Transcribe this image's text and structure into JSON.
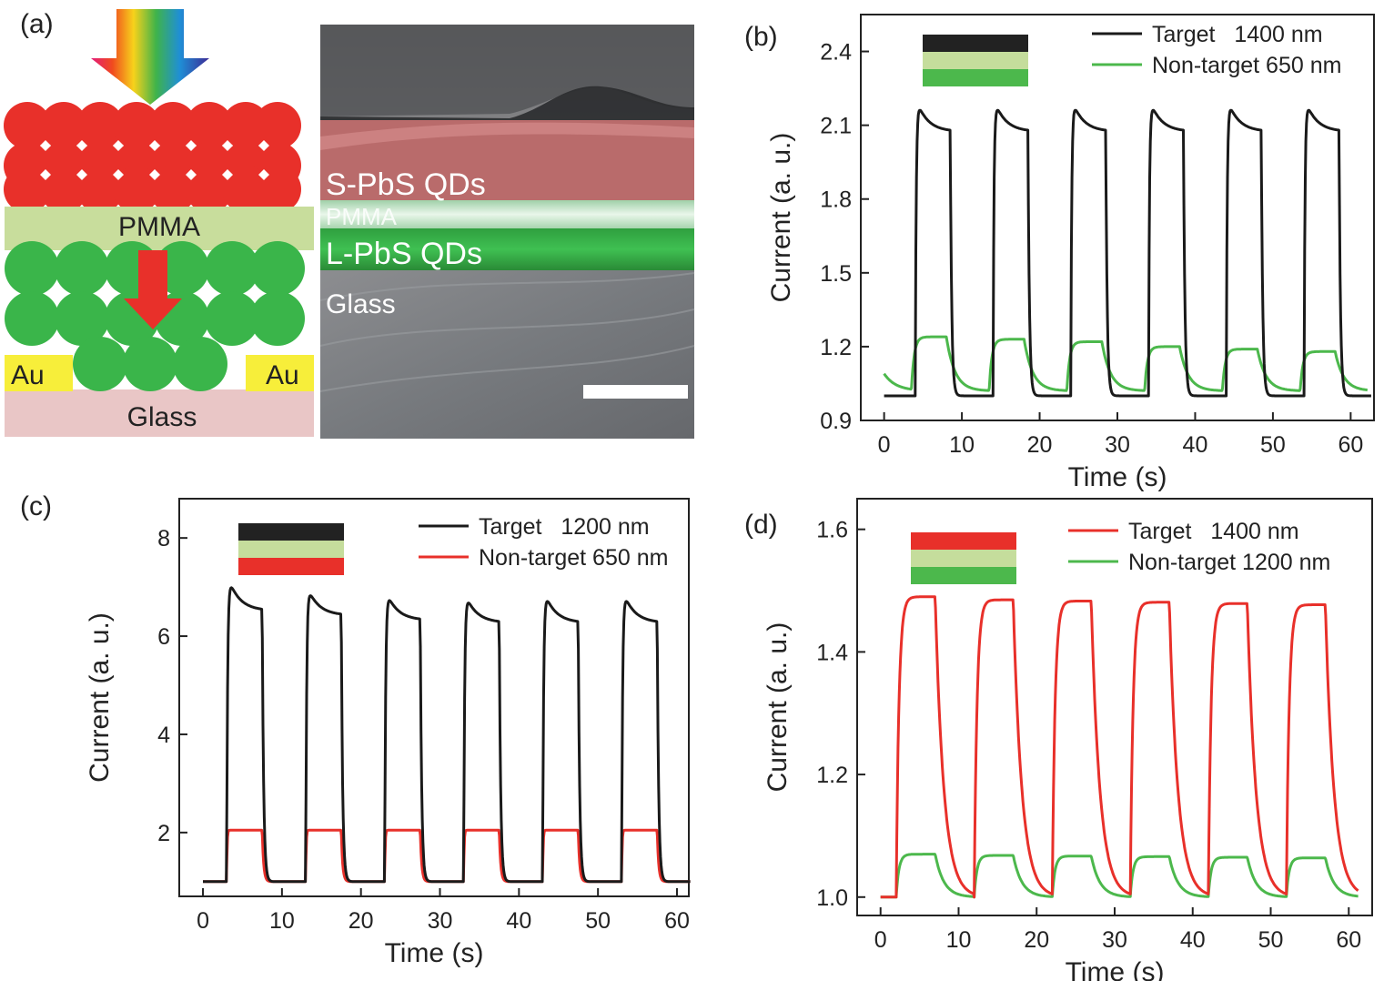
{
  "panels": {
    "a": {
      "label": "(a)",
      "layers": {
        "top": "",
        "pmma": "PMMA",
        "au_left": "Au",
        "au_right": "Au",
        "glass": "Glass"
      },
      "sem": {
        "s_qds": "S-PbS QDs",
        "pmma": "PMMA",
        "l_qds": "L-PbS QDs",
        "glass": "Glass"
      }
    },
    "b": {
      "label": "(b)"
    },
    "c": {
      "label": "(c)"
    },
    "d": {
      "label": "(d)"
    }
  },
  "chart_data": [
    {
      "id": "b",
      "type": "line",
      "xlabel": "Time (s)",
      "ylabel": "Current (a. u.)",
      "xlim": [
        -3,
        63
      ],
      "ylim": [
        0.9,
        2.55
      ],
      "xticks": [
        0,
        10,
        20,
        30,
        40,
        50,
        60
      ],
      "yticks": [
        0.9,
        1.2,
        1.5,
        1.8,
        2.1,
        2.4
      ],
      "ytick_labels": [
        "0.9",
        "1.2",
        "1.5",
        "1.8",
        "2.1",
        "2.4"
      ],
      "legend": {
        "position": "top-right",
        "entries": [
          "Target   1400 nm",
          "Non-target 650 nm"
        ]
      },
      "stack_colors": [
        "#222222",
        "#c5dd9c",
        "#4cb84c"
      ],
      "series": [
        {
          "name": "Target   1400 nm",
          "color": "#1a1a1a",
          "base": 1.0,
          "on": [
            4,
            14,
            24,
            34,
            44,
            54
          ],
          "duration": 4.5,
          "peak": 2.22,
          "plateau_end": 2.08,
          "decay": "fast"
        },
        {
          "name": "Non-target 650 nm",
          "color": "#4cb84c",
          "base": 1.02,
          "on": [
            3.5,
            13.5,
            23.5,
            33.5,
            43.5,
            53.5
          ],
          "duration": 4.5,
          "plateau": [
            1.24,
            1.23,
            1.22,
            1.2,
            1.19,
            1.18
          ],
          "start_value": 1.09,
          "decay": "slow"
        }
      ]
    },
    {
      "id": "c",
      "type": "line",
      "xlabel": "Time (s)",
      "ylabel": "Current (a. u.)",
      "xlim": [
        -3,
        61.5
      ],
      "ylim": [
        0.7,
        8.8
      ],
      "xticks": [
        0,
        10,
        20,
        30,
        40,
        50,
        60
      ],
      "yticks": [
        2,
        4,
        6,
        8
      ],
      "ytick_labels": [
        "2",
        "4",
        "6",
        "8"
      ],
      "legend": {
        "position": "top-right",
        "entries": [
          "Target   1200 nm",
          "Non-target 650 nm"
        ]
      },
      "stack_colors": [
        "#222222",
        "#c5dd9c",
        "#e8302a"
      ],
      "series": [
        {
          "name": "Target   1200 nm",
          "color": "#1a1a1a",
          "base": 1.0,
          "on": [
            3,
            13,
            23,
            33,
            43,
            53
          ],
          "duration": 4.5,
          "peak": [
            7.3,
            7.1,
            7.0,
            6.95,
            7.0,
            7.0
          ],
          "plateau_end": [
            6.55,
            6.45,
            6.35,
            6.3,
            6.3,
            6.3
          ],
          "decay": "fast"
        },
        {
          "name": "Non-target 650 nm",
          "color": "#e8302a",
          "base": 1.0,
          "on": [
            3,
            13,
            23,
            33,
            43,
            53
          ],
          "duration": 4.5,
          "plateau": [
            2.05,
            2.05,
            2.05,
            2.05,
            2.05,
            2.05
          ],
          "decay": "fast"
        }
      ]
    },
    {
      "id": "d",
      "type": "line",
      "xlabel": "Time (s)",
      "ylabel": "Current (a. u.)",
      "xlim": [
        -3,
        63
      ],
      "ylim": [
        0.97,
        1.65
      ],
      "xticks": [
        0,
        10,
        20,
        30,
        40,
        50,
        60
      ],
      "yticks": [
        1.0,
        1.2,
        1.4,
        1.6
      ],
      "ytick_labels": [
        "1.0",
        "1.2",
        "1.4",
        "1.6"
      ],
      "legend": {
        "position": "top-right",
        "entries": [
          "Target   1400 nm",
          "Non-target 1200 nm"
        ]
      },
      "stack_colors": [
        "#e8302a",
        "#c5dd9c",
        "#4cb84c"
      ],
      "series": [
        {
          "name": "Target   1400 nm",
          "color": "#e8302a",
          "base": 1.0,
          "on": [
            2,
            12,
            22,
            32,
            42,
            52
          ],
          "duration": 5,
          "plateau": [
            1.49,
            1.485,
            1.483,
            1.481,
            1.479,
            1.477
          ],
          "decay": "slow"
        },
        {
          "name": "Non-target 1200 nm",
          "color": "#4cb84c",
          "base": 1.0,
          "on": [
            2,
            12,
            22,
            32,
            42,
            52
          ],
          "duration": 5,
          "plateau": [
            1.07,
            1.068,
            1.067,
            1.066,
            1.065,
            1.064
          ],
          "decay": "slow"
        }
      ]
    }
  ]
}
